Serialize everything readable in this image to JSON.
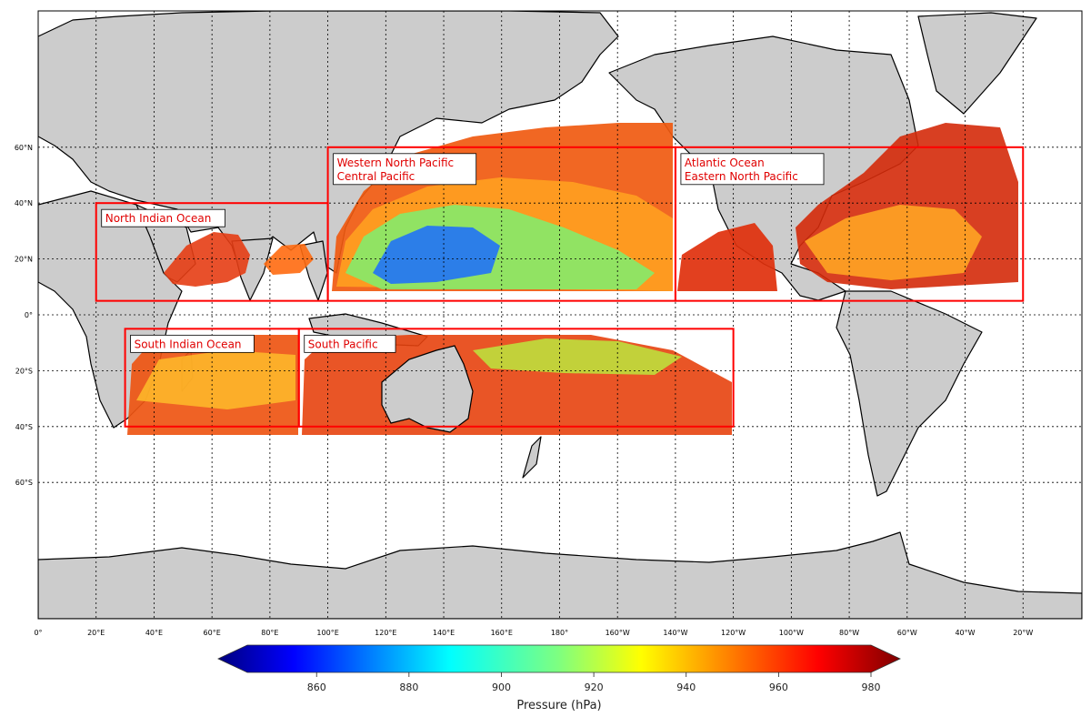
{
  "map": {
    "projection": "equirectangular",
    "land_color": "#cccccc",
    "ocean_color": "#ffffff",
    "coastline_color": "#000000",
    "grid_style": "dotted",
    "lat_ticks": [
      {
        "value": 60,
        "label": "60°N"
      },
      {
        "value": 40,
        "label": "40°N"
      },
      {
        "value": 20,
        "label": "20°N"
      },
      {
        "value": 0,
        "label": "0°"
      },
      {
        "value": -20,
        "label": "20°S"
      },
      {
        "value": -40,
        "label": "40°S"
      },
      {
        "value": -60,
        "label": "60°S"
      }
    ],
    "lon_ticks": [
      {
        "value": 0,
        "label": "0°"
      },
      {
        "value": 20,
        "label": "20°E"
      },
      {
        "value": 40,
        "label": "40°E"
      },
      {
        "value": 60,
        "label": "60°E"
      },
      {
        "value": 80,
        "label": "80°E"
      },
      {
        "value": 100,
        "label": "100°E"
      },
      {
        "value": 120,
        "label": "120°E"
      },
      {
        "value": 140,
        "label": "140°E"
      },
      {
        "value": 160,
        "label": "160°E"
      },
      {
        "value": 180,
        "label": "180°"
      },
      {
        "value": 200,
        "label": "160°W"
      },
      {
        "value": 220,
        "label": "140°W"
      },
      {
        "value": 240,
        "label": "120°W"
      },
      {
        "value": 260,
        "label": "100°W"
      },
      {
        "value": 280,
        "label": "80°W"
      },
      {
        "value": 300,
        "label": "60°W"
      },
      {
        "value": 320,
        "label": "40°W"
      },
      {
        "value": 340,
        "label": "20°W"
      }
    ],
    "regions": [
      {
        "lines": [
          "North Indian Ocean"
        ],
        "lon_min": 20,
        "lon_max": 100,
        "lat_min": 5,
        "lat_max": 40,
        "box_color": "#ff0000"
      },
      {
        "lines": [
          "Western North Pacific",
          "Central Pacific"
        ],
        "lon_min": 100,
        "lon_max": 220,
        "lat_min": 5,
        "lat_max": 60,
        "box_color": "#ff0000"
      },
      {
        "lines": [
          "Atlantic Ocean",
          "Eastern North Pacific"
        ],
        "lon_min": 220,
        "lon_max": 340,
        "lat_min": 5,
        "lat_max": 60,
        "box_color": "#ff0000"
      },
      {
        "lines": [
          "South Indian Ocean"
        ],
        "lon_min": 30,
        "lon_max": 90,
        "lat_min": -40,
        "lat_max": -5,
        "box_color": "#ff0000"
      },
      {
        "lines": [
          "South Pacific"
        ],
        "lon_min": 90,
        "lon_max": 240,
        "lat_min": -40,
        "lat_max": -5,
        "box_color": "#ff0000"
      }
    ]
  },
  "colorbar": {
    "label": "Pressure (hPa)",
    "min": 845,
    "max": 980,
    "colormap": "jet",
    "ticks": [
      860,
      880,
      900,
      920,
      940,
      960,
      980
    ],
    "extend": "both"
  }
}
